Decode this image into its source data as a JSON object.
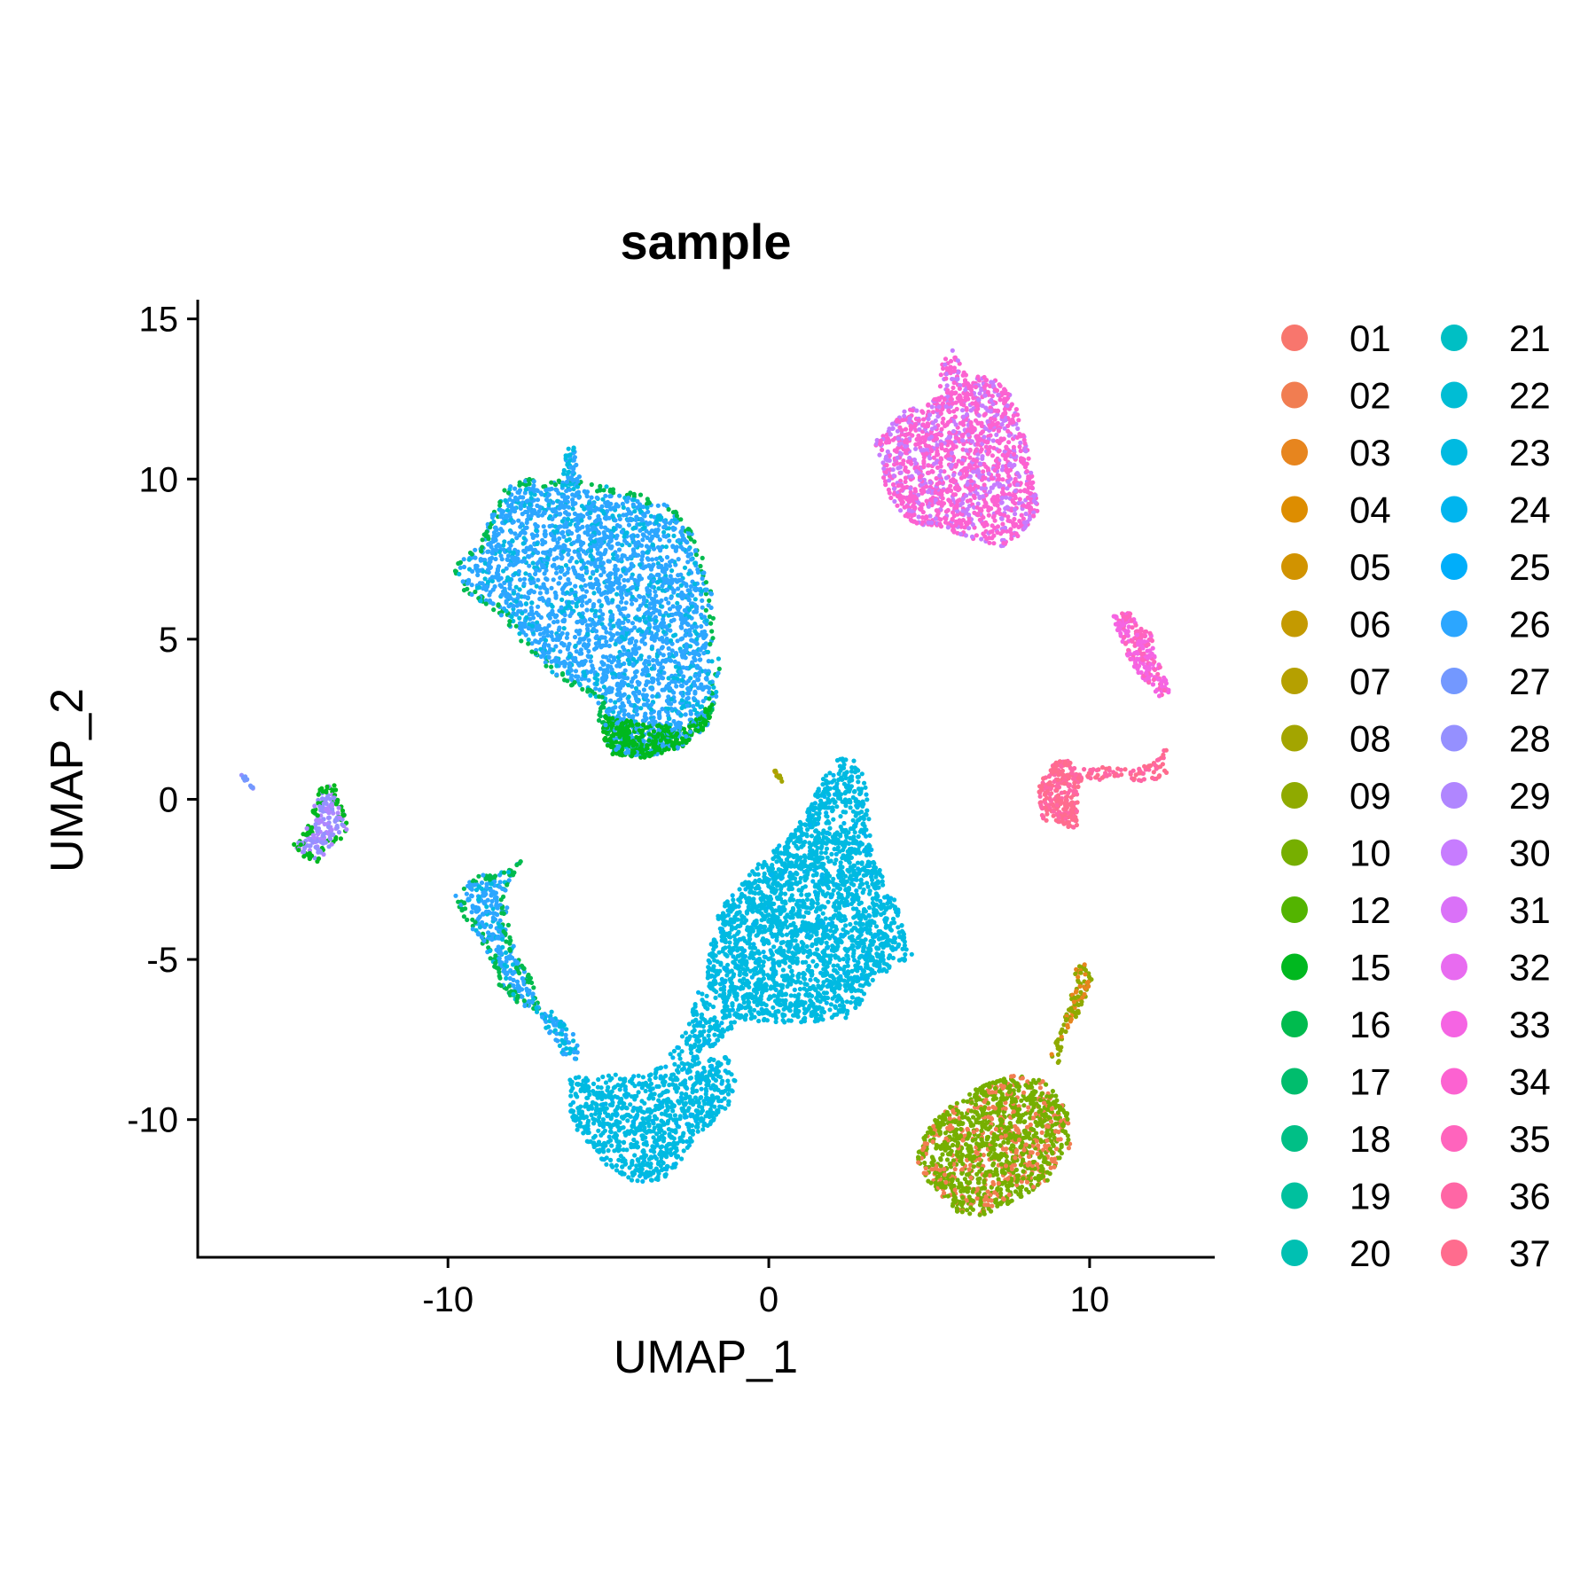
{
  "chart_data": {
    "type": "scatter",
    "title": "sample",
    "xlabel": "UMAP_1",
    "ylabel": "UMAP_2",
    "xlim": [
      -17.8,
      13.9
    ],
    "ylim": [
      -14.3,
      15.6
    ],
    "x_ticks": [
      {
        "value": -10,
        "label": "-10"
      },
      {
        "value": 0,
        "label": "0"
      },
      {
        "value": 10,
        "label": "10"
      }
    ],
    "y_ticks": [
      {
        "value": 15,
        "label": "15"
      },
      {
        "value": 10,
        "label": "10"
      },
      {
        "value": 5,
        "label": "5"
      },
      {
        "value": 0,
        "label": "0"
      },
      {
        "value": -5,
        "label": "-5"
      },
      {
        "value": -10,
        "label": "-10"
      }
    ],
    "grid": false,
    "legend_position": "right",
    "legend_columns": 2,
    "legend": [
      {
        "label": "01",
        "color": "#F8766D"
      },
      {
        "label": "02",
        "color": "#F17D51"
      },
      {
        "label": "03",
        "color": "#E7851E"
      },
      {
        "label": "04",
        "color": "#DD8D00"
      },
      {
        "label": "05",
        "color": "#D19300"
      },
      {
        "label": "06",
        "color": "#C49A00"
      },
      {
        "label": "07",
        "color": "#B5A000"
      },
      {
        "label": "08",
        "color": "#A3A500"
      },
      {
        "label": "09",
        "color": "#8FAA00"
      },
      {
        "label": "10",
        "color": "#76AF00"
      },
      {
        "label": "12",
        "color": "#53B400"
      },
      {
        "label": "15",
        "color": "#00B81F"
      },
      {
        "label": "16",
        "color": "#00BB4E"
      },
      {
        "label": "17",
        "color": "#00BD6D"
      },
      {
        "label": "18",
        "color": "#00BF86"
      },
      {
        "label": "19",
        "color": "#00C09E"
      },
      {
        "label": "20",
        "color": "#00C0B2"
      },
      {
        "label": "21",
        "color": "#00BFC4"
      },
      {
        "label": "22",
        "color": "#00BDD4"
      },
      {
        "label": "23",
        "color": "#00BAE1"
      },
      {
        "label": "24",
        "color": "#00B5EE"
      },
      {
        "label": "25",
        "color": "#00AEFA"
      },
      {
        "label": "26",
        "color": "#2CA6FF"
      },
      {
        "label": "27",
        "color": "#7398FF"
      },
      {
        "label": "28",
        "color": "#9590FF"
      },
      {
        "label": "29",
        "color": "#B086FF"
      },
      {
        "label": "30",
        "color": "#C77CFF"
      },
      {
        "label": "31",
        "color": "#DA71F8"
      },
      {
        "label": "32",
        "color": "#E86BF0"
      },
      {
        "label": "33",
        "color": "#F564E3"
      },
      {
        "label": "34",
        "color": "#FC62D1"
      },
      {
        "label": "35",
        "color": "#FF64BD"
      },
      {
        "label": "36",
        "color": "#FF66A5"
      },
      {
        "label": "37",
        "color": "#FF6C8E"
      }
    ],
    "clusters": [
      {
        "id": "upper-left-blue",
        "base_color": "#2CA6FF",
        "secondary_color": "#00BAE1",
        "secondary_ratio": 0.22,
        "edge_color": "#00BB4E",
        "polygon": [
          [
            -9.9,
            7.2
          ],
          [
            -9.0,
            8.0
          ],
          [
            -8.3,
            9.7
          ],
          [
            -7.5,
            10.0
          ],
          [
            -6.9,
            9.9
          ],
          [
            -6.3,
            10.0
          ],
          [
            -5.2,
            9.8
          ],
          [
            -4.2,
            9.6
          ],
          [
            -3.0,
            9.1
          ],
          [
            -2.3,
            8.2
          ],
          [
            -1.8,
            6.8
          ],
          [
            -1.7,
            5.3
          ],
          [
            -1.5,
            4.1
          ],
          [
            -1.7,
            2.8
          ],
          [
            -2.5,
            1.8
          ],
          [
            -3.8,
            1.3
          ],
          [
            -4.8,
            1.4
          ],
          [
            -5.3,
            2.3
          ],
          [
            -5.3,
            3.0
          ],
          [
            -6.3,
            3.6
          ],
          [
            -7.3,
            4.4
          ],
          [
            -8.4,
            5.8
          ],
          [
            -9.6,
            6.6
          ]
        ],
        "n": 2800
      },
      {
        "id": "upper-left-green-base",
        "base_color": "#00B81F",
        "secondary_color": "#2CA6FF",
        "secondary_ratio": 0.2,
        "polygon": [
          [
            -5.1,
            2.6
          ],
          [
            -3.9,
            2.4
          ],
          [
            -2.6,
            2.2
          ],
          [
            -1.7,
            3.1
          ],
          [
            -1.9,
            2.3
          ],
          [
            -2.7,
            1.6
          ],
          [
            -3.9,
            1.3
          ],
          [
            -4.9,
            1.4
          ],
          [
            -5.2,
            2.0
          ]
        ],
        "n": 380
      },
      {
        "id": "upper-left-spike",
        "base_color": "#00BAE1",
        "secondary_color": "#2CA6FF",
        "secondary_ratio": 0.4,
        "polygon": [
          [
            -6.5,
            9.8
          ],
          [
            -6.3,
            10.9
          ],
          [
            -6.1,
            11.1
          ],
          [
            -5.9,
            10.2
          ],
          [
            -5.9,
            9.7
          ]
        ],
        "n": 50
      },
      {
        "id": "center-cyan",
        "base_color": "#00BAE1",
        "secondary_color": "#00B5EE",
        "secondary_ratio": 0.1,
        "polygon": [
          [
            2.2,
            1.3
          ],
          [
            2.7,
            1.2
          ],
          [
            3.0,
            0.8
          ],
          [
            3.2,
            -1.5
          ],
          [
            3.5,
            -2.3
          ],
          [
            4.0,
            -3.3
          ],
          [
            4.5,
            -4.9
          ],
          [
            3.3,
            -5.6
          ],
          [
            2.6,
            -6.8
          ],
          [
            1.0,
            -7.0
          ],
          [
            -0.8,
            -6.9
          ],
          [
            -1.6,
            -6.6
          ],
          [
            -2.0,
            -5.5
          ],
          [
            -1.6,
            -3.5
          ],
          [
            -0.3,
            -2.0
          ],
          [
            0.8,
            -1.0
          ],
          [
            1.3,
            -0.2
          ],
          [
            1.6,
            0.6
          ]
        ],
        "n": 2400
      },
      {
        "id": "lower-cyan",
        "base_color": "#00BAE1",
        "secondary_color": "#00B5EE",
        "secondary_ratio": 0.1,
        "polygon": [
          [
            -6.2,
            -8.7
          ],
          [
            -5.2,
            -8.6
          ],
          [
            -4.2,
            -8.6
          ],
          [
            -2.8,
            -8.2
          ],
          [
            -1.4,
            -7.9
          ],
          [
            -1.0,
            -8.6
          ],
          [
            -1.3,
            -9.8
          ],
          [
            -2.3,
            -10.5
          ],
          [
            -2.8,
            -11.4
          ],
          [
            -3.3,
            -11.9
          ],
          [
            -4.2,
            -12.0
          ],
          [
            -5.1,
            -11.4
          ],
          [
            -5.9,
            -10.5
          ],
          [
            -6.2,
            -9.7
          ]
        ],
        "n": 900
      },
      {
        "id": "bridge-cyan",
        "base_color": "#00BAE1",
        "secondary_color": "#00B5EE",
        "secondary_ratio": 0.1,
        "polygon": [
          [
            -2.2,
            -6.0
          ],
          [
            -1.6,
            -6.3
          ],
          [
            -0.8,
            -6.8
          ],
          [
            -1.6,
            -7.6
          ],
          [
            -2.6,
            -8.3
          ],
          [
            -3.1,
            -8.0
          ],
          [
            -2.5,
            -7.0
          ]
        ],
        "n": 140
      },
      {
        "id": "left-blue-arm",
        "base_color": "#2CA6FF",
        "secondary_color": "#00BAE1",
        "secondary_ratio": 0.2,
        "edge_color": "#00BB4E",
        "polygon": [
          [
            -9.8,
            -3.0
          ],
          [
            -9.2,
            -2.4
          ],
          [
            -8.4,
            -2.3
          ],
          [
            -7.7,
            -1.9
          ],
          [
            -8.2,
            -2.8
          ],
          [
            -8.1,
            -4.1
          ],
          [
            -7.8,
            -5.0
          ],
          [
            -7.4,
            -5.6
          ],
          [
            -7.1,
            -6.6
          ],
          [
            -7.8,
            -6.4
          ],
          [
            -8.4,
            -5.8
          ],
          [
            -8.8,
            -4.7
          ],
          [
            -9.5,
            -3.7
          ]
        ],
        "n": 380
      },
      {
        "id": "left-blue-tail",
        "base_color": "#00BAE1",
        "secondary_color": "#2CA6FF",
        "secondary_ratio": 0.4,
        "polygon": [
          [
            -7.4,
            -6.3
          ],
          [
            -6.8,
            -6.6
          ],
          [
            -6.0,
            -7.4
          ],
          [
            -5.8,
            -8.2
          ],
          [
            -6.4,
            -8.0
          ],
          [
            -7.0,
            -7.1
          ]
        ],
        "n": 70
      },
      {
        "id": "far-left-small",
        "base_color": "#9590FF",
        "secondary_color": "#B086FF",
        "secondary_ratio": 0.45,
        "edge_color": "#00B81F",
        "polygon": [
          [
            -14.8,
            -1.4
          ],
          [
            -14.4,
            -0.9
          ],
          [
            -14.0,
            0.3
          ],
          [
            -13.6,
            0.6
          ],
          [
            -13.2,
            -0.5
          ],
          [
            -13.1,
            -1.1
          ],
          [
            -13.6,
            -1.4
          ],
          [
            -14.1,
            -2.0
          ],
          [
            -14.6,
            -1.8
          ]
        ],
        "n": 230
      },
      {
        "id": "far-left-dot",
        "base_color": "#7398FF",
        "secondary_color": "#9590FF",
        "secondary_ratio": 0.4,
        "polygon": [
          [
            -16.5,
            0.8
          ],
          [
            -16.3,
            0.7
          ],
          [
            -16.0,
            0.3
          ],
          [
            -16.2,
            0.4
          ]
        ],
        "n": 14
      },
      {
        "id": "upper-right-pink",
        "base_color": "#FC62D1",
        "secondary_color": "#C77CFF",
        "secondary_ratio": 0.3,
        "polygon": [
          [
            3.3,
            11.2
          ],
          [
            4.2,
            12.1
          ],
          [
            4.8,
            12.4
          ],
          [
            5.3,
            12.6
          ],
          [
            5.4,
            13.6
          ],
          [
            5.7,
            14.1
          ],
          [
            6.2,
            13.2
          ],
          [
            7.0,
            13.2
          ],
          [
            7.6,
            12.6
          ],
          [
            7.9,
            11.8
          ],
          [
            8.2,
            10.5
          ],
          [
            8.4,
            8.9
          ],
          [
            7.8,
            8.2
          ],
          [
            7.3,
            7.9
          ],
          [
            6.4,
            8.1
          ],
          [
            5.3,
            8.5
          ],
          [
            4.4,
            8.6
          ],
          [
            3.7,
            9.5
          ],
          [
            3.5,
            10.3
          ]
        ],
        "n": 1500
      },
      {
        "id": "right-pink-arm",
        "base_color": "#F564E3",
        "secondary_color": "#FF64BD",
        "secondary_ratio": 0.4,
        "polygon": [
          [
            10.7,
            5.7
          ],
          [
            11.2,
            5.9
          ],
          [
            11.6,
            5.4
          ],
          [
            12.0,
            5.1
          ],
          [
            12.0,
            4.5
          ],
          [
            12.4,
            3.8
          ],
          [
            12.5,
            3.3
          ],
          [
            12.2,
            3.2
          ],
          [
            11.6,
            3.8
          ],
          [
            11.2,
            4.4
          ],
          [
            10.9,
            5.2
          ]
        ],
        "n": 220
      },
      {
        "id": "right-salmon-blob",
        "base_color": "#FF6C8E",
        "secondary_color": "#FF66A5",
        "secondary_ratio": 0.4,
        "polygon": [
          [
            8.4,
            0.4
          ],
          [
            8.9,
            1.2
          ],
          [
            9.4,
            1.2
          ],
          [
            9.8,
            0.6
          ],
          [
            9.6,
            -0.2
          ],
          [
            9.6,
            -0.9
          ],
          [
            9.0,
            -0.8
          ],
          [
            8.5,
            -0.6
          ]
        ],
        "n": 260
      },
      {
        "id": "right-salmon-tail",
        "base_color": "#FF6C8E",
        "secondary_color": "#FF66A5",
        "secondary_ratio": 0.4,
        "polygon": [
          [
            9.8,
            1.0
          ],
          [
            10.6,
            1.0
          ],
          [
            11.4,
            0.9
          ],
          [
            12.2,
            1.3
          ],
          [
            12.4,
            1.7
          ],
          [
            12.4,
            0.7
          ],
          [
            11.6,
            0.5
          ],
          [
            10.6,
            0.6
          ],
          [
            9.9,
            0.6
          ]
        ],
        "n": 80
      },
      {
        "id": "lower-right-olive",
        "base_color": "#76AF00",
        "secondary_color": "#F17D51",
        "secondary_ratio": 0.28,
        "polygon": [
          [
            4.8,
            -10.4
          ],
          [
            5.6,
            -9.6
          ],
          [
            6.5,
            -9.0
          ],
          [
            7.6,
            -8.6
          ],
          [
            8.6,
            -8.8
          ],
          [
            9.3,
            -9.6
          ],
          [
            9.4,
            -10.9
          ],
          [
            8.7,
            -11.9
          ],
          [
            7.6,
            -12.6
          ],
          [
            6.6,
            -13.0
          ],
          [
            5.9,
            -12.9
          ],
          [
            5.0,
            -12.0
          ],
          [
            4.6,
            -11.3
          ]
        ],
        "n": 1300
      },
      {
        "id": "lower-right-strand",
        "base_color": "#8FAA00",
        "secondary_color": "#E7851E",
        "secondary_ratio": 0.35,
        "polygon": [
          [
            9.6,
            -5.2
          ],
          [
            9.9,
            -4.9
          ],
          [
            10.1,
            -5.6
          ],
          [
            9.7,
            -6.6
          ],
          [
            9.2,
            -7.4
          ],
          [
            9.0,
            -8.4
          ],
          [
            8.8,
            -8.0
          ],
          [
            9.1,
            -7.2
          ],
          [
            9.4,
            -6.2
          ]
        ],
        "n": 110
      },
      {
        "id": "center-olive-dot",
        "base_color": "#A3A500",
        "secondary_color": "#C49A00",
        "secondary_ratio": 0.3,
        "polygon": [
          [
            0.1,
            1.0
          ],
          [
            0.3,
            0.9
          ],
          [
            0.5,
            0.5
          ],
          [
            0.3,
            0.6
          ]
        ],
        "n": 10
      }
    ]
  }
}
